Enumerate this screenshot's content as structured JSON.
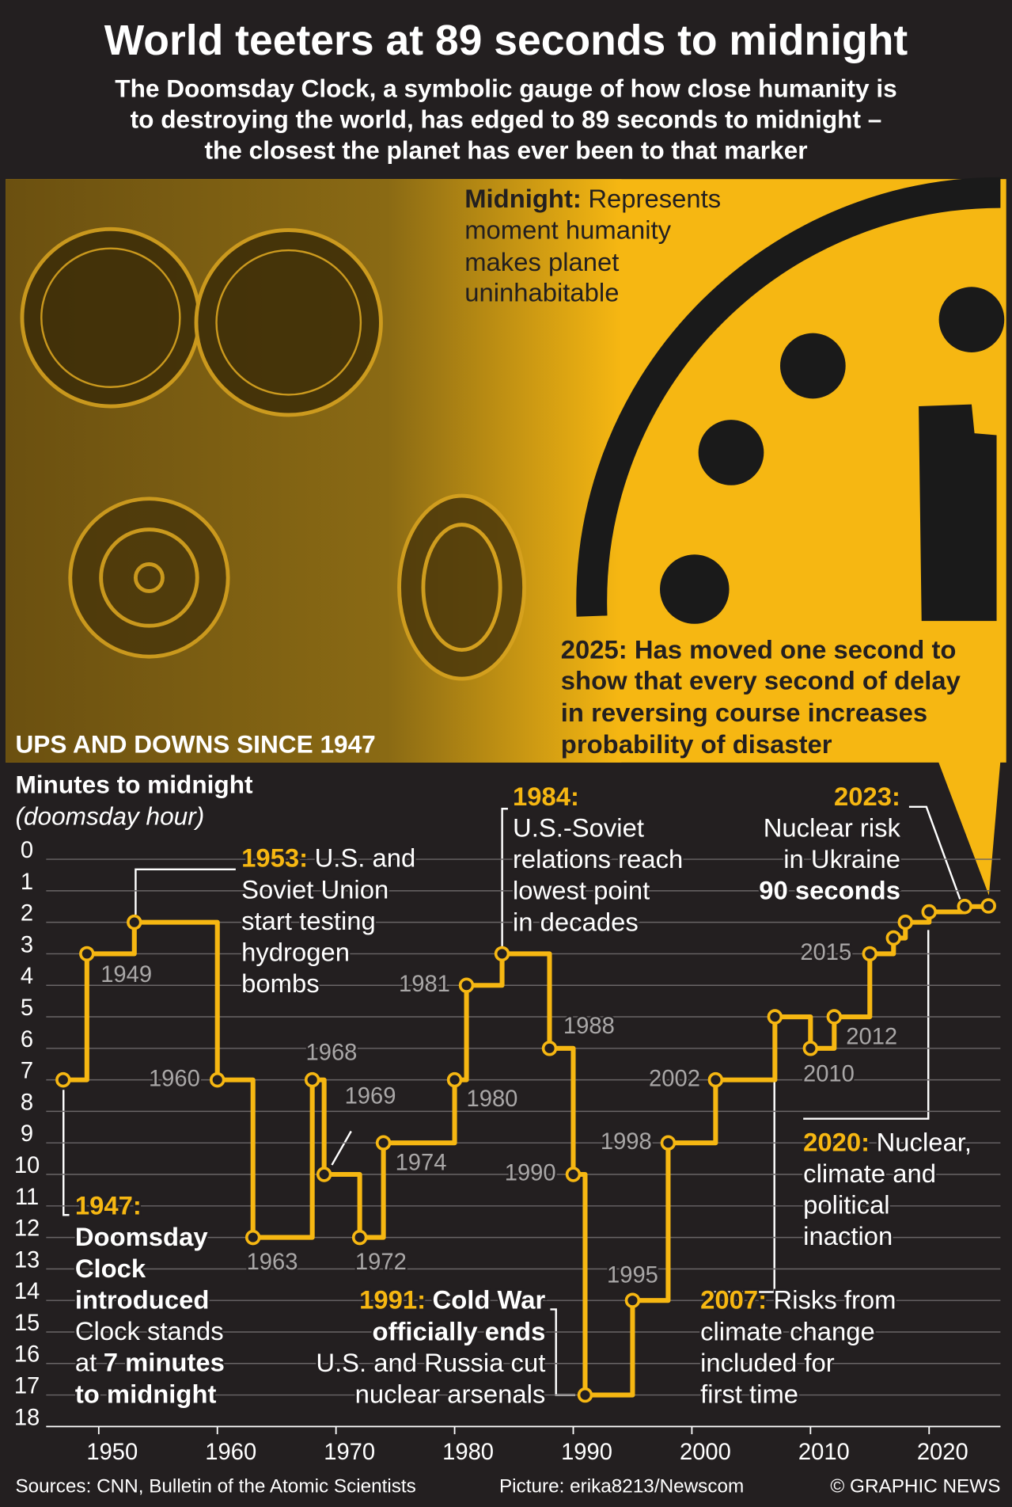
{
  "header": {
    "title": "World teeters at 89 seconds to midnight",
    "subtitle": [
      "The Doomsday Clock, a symbolic gauge of how close humanity is",
      "to destroying the world, has edged to 89 seconds to midnight –",
      "the closest the planet has ever been to that marker"
    ]
  },
  "midnight_note": {
    "lead": "Midnight:",
    "lines": [
      "Represents",
      "moment humanity",
      "makes planet",
      "uninhabitable"
    ]
  },
  "note_2025": [
    "2025: Has moved one second to",
    "show that every second of delay",
    "in reversing course increases",
    "probability of disaster"
  ],
  "section_title": "UPS AND DOWNS SINCE 1947",
  "chart_data": {
    "type": "line",
    "step": true,
    "y_label": "Minutes to midnight",
    "y_sublabel": "(doomsday hour)",
    "x": [
      1947,
      1949,
      1953,
      1960,
      1963,
      1968,
      1969,
      1972,
      1974,
      1980,
      1981,
      1984,
      1988,
      1990,
      1991,
      1995,
      1998,
      2002,
      2007,
      2010,
      2012,
      2015,
      2017,
      2018,
      2020,
      2023,
      2025
    ],
    "values": [
      7,
      3,
      2,
      7,
      12,
      7,
      10,
      12,
      9,
      7,
      4,
      3,
      6,
      10,
      17,
      14,
      9,
      7,
      5,
      6,
      5,
      3,
      2.5,
      2,
      1.67,
      1.5,
      1.48
    ],
    "point_labels": [
      null,
      1949,
      null,
      1960,
      1963,
      1968,
      1969,
      1972,
      1974,
      1980,
      1981,
      null,
      1988,
      1990,
      null,
      1995,
      1998,
      2002,
      null,
      2010,
      2012,
      2015,
      null,
      null,
      null,
      null,
      null
    ],
    "color": "#f6b712",
    "xlim": [
      1945,
      2026.5
    ],
    "ylim": [
      0,
      18
    ],
    "y_inverted": true,
    "xticks": [
      1950,
      1960,
      1970,
      1980,
      1990,
      2000,
      2010,
      2020
    ],
    "yticks": [
      0,
      1,
      2,
      3,
      4,
      5,
      6,
      7,
      8,
      9,
      10,
      11,
      12,
      13,
      14,
      15,
      16,
      17,
      18
    ],
    "grid": true,
    "annotations": [
      {
        "year": "1953:",
        "lines": [
          "U.S. and",
          "Soviet Union",
          "start testing",
          "hydrogen",
          "bombs"
        ]
      },
      {
        "year": "1984:",
        "lines": [
          "U.S.-Soviet",
          "relations reach",
          "lowest point",
          "in decades"
        ]
      },
      {
        "year": "2023:",
        "lines": [
          "Nuclear risk",
          "in Ukraine",
          "90 seconds"
        ]
      },
      {
        "year": "1947:",
        "lines": [
          "Doomsday",
          "Clock",
          "introduced",
          "Clock stands",
          "at",
          "7 minutes",
          "to midnight"
        ]
      },
      {
        "year": "1991:",
        "lines": [
          "Cold War",
          "officially ends",
          "U.S. and Russia cut",
          "nuclear arsenals"
        ]
      },
      {
        "year": "2007:",
        "lines": [
          "Risks from",
          "climate change",
          "included for",
          "first time"
        ]
      },
      {
        "year": "2020:",
        "lines": [
          "Nuclear,",
          "climate and",
          "political",
          "inaction"
        ]
      }
    ]
  },
  "footer": {
    "sources": "Sources: CNN, Bulletin of the Atomic Scientists",
    "picture": "Picture: erika8213/Newscom",
    "credit": "© GRAPHIC NEWS"
  }
}
